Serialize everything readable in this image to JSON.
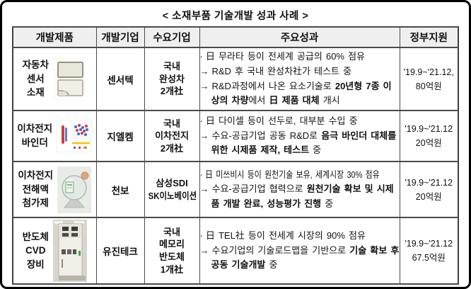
{
  "title": "< 소재부품 기술개발 성과 사례 >",
  "colors": {
    "frame_border": "#000000",
    "table_border": "#4a4a4a",
    "header_bg": "#efefef",
    "binder_dot_blue": "#3b6bd6",
    "binder_dot_red": "#d43b3b",
    "binder_line_yellow": "#f0c400",
    "flask_label_green": "#5f9a6a",
    "machine_light_green": "#3fae4a"
  },
  "table": {
    "headers": [
      "개발제품",
      "개발기업",
      "수요기업",
      "주요성과",
      "정부지원"
    ],
    "rows": [
      {
        "product": {
          "lines": [
            "자동차",
            "센서",
            "소재"
          ],
          "image": "sensor-chips"
        },
        "developer": "센서텍",
        "buyer_lines": [
          "국내",
          "완성차",
          "2개社"
        ],
        "achievements": [
          {
            "marker": "·",
            "condensed": false,
            "segments": [
              {
                "text": "日 무라타 등이 전세계 공급의 60% 점유",
                "bold": false
              }
            ]
          },
          {
            "marker": "→",
            "condensed": false,
            "segments": [
              {
                "text": "R&D 후 국내 완성차社가 테스트 중",
                "bold": false
              }
            ]
          },
          {
            "marker": "→",
            "condensed": false,
            "segments": [
              {
                "text": "R&D과정에서 나온 요소기술로 ",
                "bold": false
              },
              {
                "text": "20년형 7종 이상의 차량",
                "bold": true
              },
              {
                "text": "에서 ",
                "bold": false
              },
              {
                "text": "日 제품 대체",
                "bold": true
              },
              {
                "text": " 개시",
                "bold": false
              }
            ]
          }
        ],
        "support_lines": [
          "'19.9~'21.12,",
          "80억원"
        ]
      },
      {
        "product": {
          "lines": [
            "이차전지",
            "바인더"
          ],
          "image": "binder-diagram"
        },
        "developer": "지엘켐",
        "buyer_lines": [
          "국내",
          "이차전지",
          "2개社"
        ],
        "achievements": [
          {
            "marker": "·",
            "condensed": false,
            "segments": [
              {
                "text": "日 다이셀 등이 선두로, 대부분 수입 중",
                "bold": false
              }
            ]
          },
          {
            "marker": "→",
            "condensed": false,
            "segments": [
              {
                "text": "수요-공급기업 공동 R&D로 ",
                "bold": false
              },
              {
                "text": "음극 바인더 대체를 위한 시제품 제작, 테스트",
                "bold": true
              },
              {
                "text": " 중",
                "bold": false
              }
            ]
          }
        ],
        "support_lines": [
          "'19.9~'21.12",
          "20억원"
        ]
      },
      {
        "product": {
          "lines": [
            "이차전지",
            "전해액",
            "첨가제"
          ],
          "image": "electrolyte-flask"
        },
        "developer": "천보",
        "buyer_lines": [
          "삼성SDI",
          "SK이노베이션"
        ],
        "achievements": [
          {
            "marker": "·",
            "condensed": true,
            "segments": [
              {
                "text": "日 미쓰비시 등이 원천기술 보유, 세계시장 30% 점유",
                "bold": false
              }
            ]
          },
          {
            "marker": "→",
            "condensed": false,
            "segments": [
              {
                "text": "수요-공급기업 협력으로 ",
                "bold": false
              },
              {
                "text": "원천기술 확보 및 시제품 개발 완료, 성능평가 진행",
                "bold": true
              },
              {
                "text": " 중",
                "bold": false
              }
            ]
          }
        ],
        "support_lines": [
          "'19.9~'21.12",
          "20억원"
        ]
      },
      {
        "product": {
          "lines": [
            "반도체",
            "CVD",
            "장비"
          ],
          "image": "cvd-machine"
        },
        "developer": "유진테크",
        "buyer_lines": [
          "국내",
          "메모리",
          "반도체",
          "1개社"
        ],
        "achievements": [
          {
            "marker": "·",
            "condensed": false,
            "segments": [
              {
                "text": "日 TEL社 등이 전세계 시장의 90% 점유",
                "bold": false
              }
            ]
          },
          {
            "marker": "→",
            "condensed": false,
            "segments": [
              {
                "text": "수요기업의 기술로드맵을 기반으로 ",
                "bold": false
              },
              {
                "text": "기술 확보 후 공동 기술개발",
                "bold": true
              },
              {
                "text": " 중",
                "bold": false
              }
            ]
          }
        ],
        "support_lines": [
          "'19.9~'21.12",
          "67.5억원"
        ]
      }
    ]
  }
}
